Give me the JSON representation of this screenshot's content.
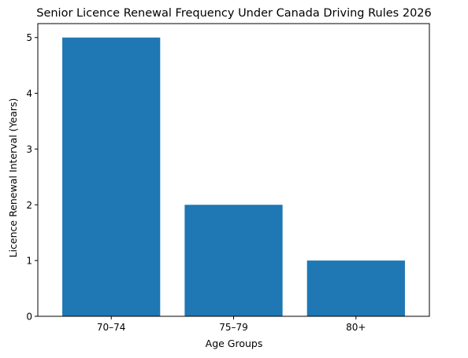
{
  "chart_data": {
    "type": "bar",
    "title": "Senior Licence Renewal Frequency Under Canada Driving Rules 2026",
    "xlabel": "Age Groups",
    "ylabel": "Licence Renewal Interval (Years)",
    "categories": [
      "70–74",
      "75–79",
      "80+"
    ],
    "values": [
      5,
      2,
      1
    ],
    "ylim": [
      0,
      5.25
    ],
    "yticks": [
      "0",
      "1",
      "2",
      "3",
      "4",
      "5"
    ],
    "bar_color": "#1f77b4",
    "grid": false
  }
}
